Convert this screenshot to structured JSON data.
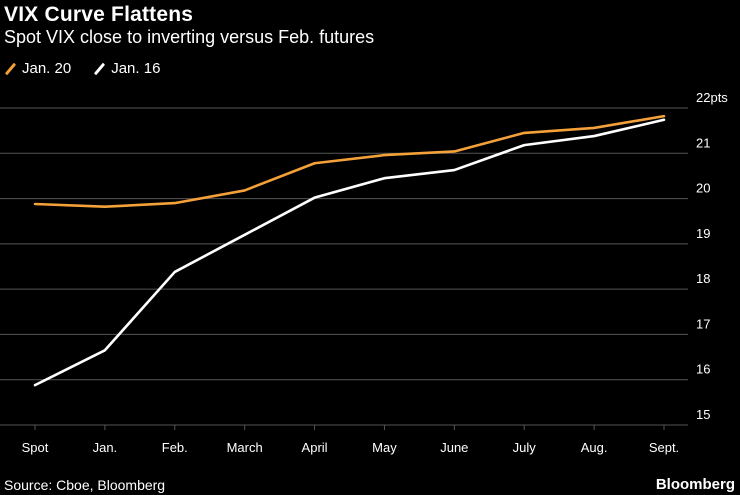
{
  "header": {
    "title": "VIX Curve Flattens",
    "subtitle": "Spot VIX close to inverting versus Feb. futures"
  },
  "footer": {
    "source": "Source: Cboe, Bloomberg",
    "brand": "Bloomberg"
  },
  "colors": {
    "background": "#000000",
    "gridline": "#555555",
    "series_jan20": "#f4a13a",
    "series_jan16": "#ffffff"
  },
  "chart_data": {
    "type": "line",
    "title": "VIX Curve Flattens",
    "subtitle": "Spot VIX close to inverting versus Feb. futures",
    "xlabel": "",
    "ylabel": "pts",
    "categories": [
      "Spot",
      "Jan.",
      "Feb.",
      "March",
      "April",
      "May",
      "June",
      "July",
      "Aug.",
      "Sept."
    ],
    "ylim": [
      15,
      22
    ],
    "yticks": [
      15,
      16,
      17,
      18,
      19,
      20,
      21,
      22
    ],
    "ytick_labels": [
      "15",
      "16",
      "17",
      "18",
      "19",
      "20",
      "21",
      "22pts"
    ],
    "grid": true,
    "legend_position": "top-left",
    "series": [
      {
        "name": "Jan. 20",
        "color": "#f4a13a",
        "values": [
          19.88,
          19.82,
          19.9,
          20.18,
          20.78,
          20.96,
          21.04,
          21.45,
          21.56,
          21.82
        ]
      },
      {
        "name": "Jan. 16",
        "color": "#ffffff",
        "values": [
          15.88,
          16.65,
          18.38,
          19.2,
          20.02,
          20.45,
          20.63,
          21.18,
          21.38,
          21.74
        ]
      }
    ]
  }
}
